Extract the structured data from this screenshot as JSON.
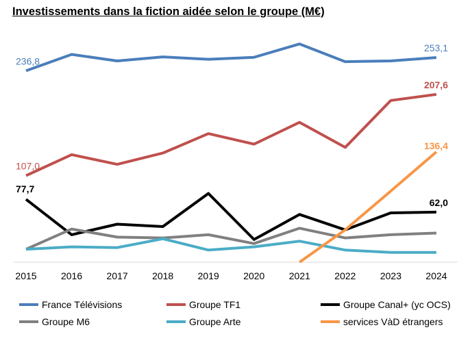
{
  "chart_data": {
    "type": "line",
    "title": "Investissements dans la fiction aidée selon le groupe (M€)",
    "xlabel": "",
    "ylabel": "",
    "categories": [
      "2015",
      "2016",
      "2017",
      "2018",
      "2019",
      "2020",
      "2021",
      "2022",
      "2023",
      "2024"
    ],
    "ylim": [
      0,
      282
    ],
    "grid": false,
    "legend_position": "bottom",
    "series": [
      {
        "name": "France Télévisions",
        "color": "#4a7ebb",
        "values": [
          236.8,
          257,
          249,
          254,
          251,
          253.5,
          270,
          248,
          249,
          253.1
        ]
      },
      {
        "name": "Groupe TF1",
        "color": "#c0504d",
        "values": [
          107.0,
          133,
          121,
          135,
          159,
          146,
          173,
          142,
          200,
          207.6
        ]
      },
      {
        "name": "Groupe Canal+ (yc OCS)",
        "color": "#000000",
        "values": [
          77.7,
          34,
          47,
          44,
          85,
          28,
          59,
          40,
          61,
          62.0
        ]
      },
      {
        "name": "Groupe M6",
        "color": "#808080",
        "values": [
          16,
          41,
          31,
          30,
          34,
          23,
          42,
          30,
          34,
          36
        ]
      },
      {
        "name": "Groupe Arte",
        "color": "#4bacc6",
        "values": [
          16,
          19,
          18,
          29,
          15,
          19,
          26,
          15,
          12,
          12
        ]
      },
      {
        "name": "services VàD étrangers",
        "color": "#f79646",
        "values": [
          null,
          null,
          null,
          null,
          null,
          null,
          0,
          40,
          88,
          136.4
        ]
      }
    ],
    "data_labels": [
      {
        "series": 0,
        "index": 0,
        "text": "236,8",
        "color": "#4a7ebb"
      },
      {
        "series": 0,
        "index": 9,
        "text": "253,1",
        "color": "#4a7ebb"
      },
      {
        "series": 1,
        "index": 0,
        "text": "107,0",
        "color": "#c0504d"
      },
      {
        "series": 1,
        "index": 9,
        "text": "207,6",
        "color": "#c0504d"
      },
      {
        "series": 2,
        "index": 0,
        "text": "77,7",
        "color": "#000000"
      },
      {
        "series": 2,
        "index": 9,
        "text": "62,0",
        "color": "#000000"
      },
      {
        "series": 5,
        "index": 9,
        "text": "136,4",
        "color": "#f79646"
      }
    ]
  }
}
